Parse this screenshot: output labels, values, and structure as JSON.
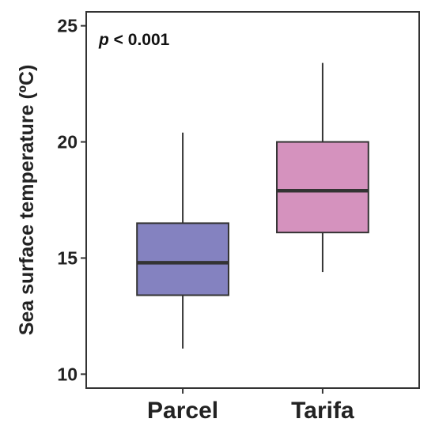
{
  "chart_data": {
    "type": "boxplot",
    "ylabel": "Sea surface temperature (ºC)",
    "ylim": [
      9.4,
      25.6
    ],
    "yticks": [
      10,
      15,
      20,
      25
    ],
    "grid": false,
    "annotation": {
      "p_symbol": "p",
      "p_rest": " < 0.001",
      "placement": "top-left"
    },
    "categories": [
      "Parcel",
      "Tarifa"
    ],
    "boxes": [
      {
        "category": "Parcel",
        "min": 11.1,
        "q1": 13.4,
        "median": 14.8,
        "q3": 16.5,
        "max": 20.4,
        "color": "#8482c0"
      },
      {
        "category": "Tarifa",
        "min": 14.4,
        "q1": 16.1,
        "median": 17.9,
        "q3": 20.0,
        "max": 23.4,
        "color": "#d592be"
      }
    ]
  }
}
